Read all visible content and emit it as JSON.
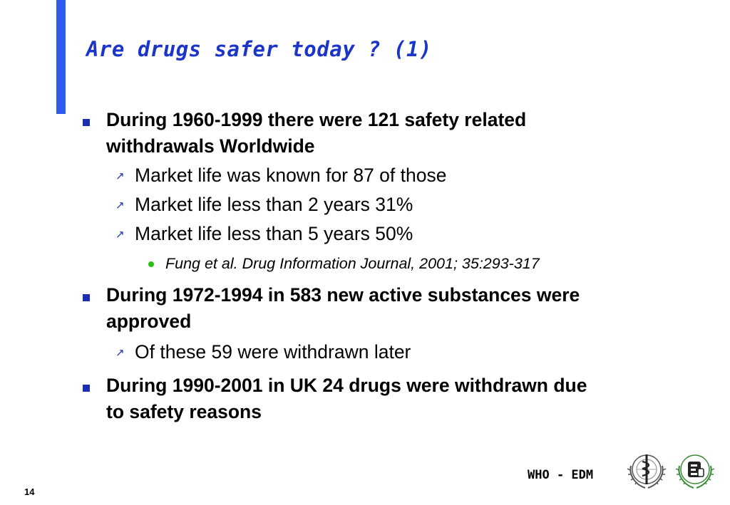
{
  "slide": {
    "title": "Are drugs safer today ? (1)",
    "accent_color": "#2f5cf0",
    "title_color": "#1b35c8",
    "bullets": [
      {
        "lines": [
          "During 1960-1999 there were 121 safety related",
          "withdrawals Worldwide"
        ],
        "subitems": [
          "Market life was known for 87 of those",
          "Market life less than 2 years 31%",
          "Market life less than 5 years 50%"
        ],
        "reference": "Fung et al. Drug Information Journal, 2001; 35:293-317"
      },
      {
        "lines": [
          "During 1972-1994 in 583 new active substances were",
          "approved"
        ],
        "subitems": [
          "Of these 59 were withdrawn later"
        ]
      },
      {
        "lines": [
          "During 1990-2001 in UK 24 drugs were withdrawn due",
          "to safety reasons"
        ]
      }
    ],
    "bullet_icons": {
      "level1": "square-bullet-icon",
      "level2": "arrow-bullet-icon",
      "level3": "green-dot-bullet-icon"
    }
  },
  "footer": {
    "organization": "WHO - EDM",
    "page_number": "14",
    "logos": [
      "who-emblem-logo",
      "edm-emblem-logo"
    ]
  }
}
